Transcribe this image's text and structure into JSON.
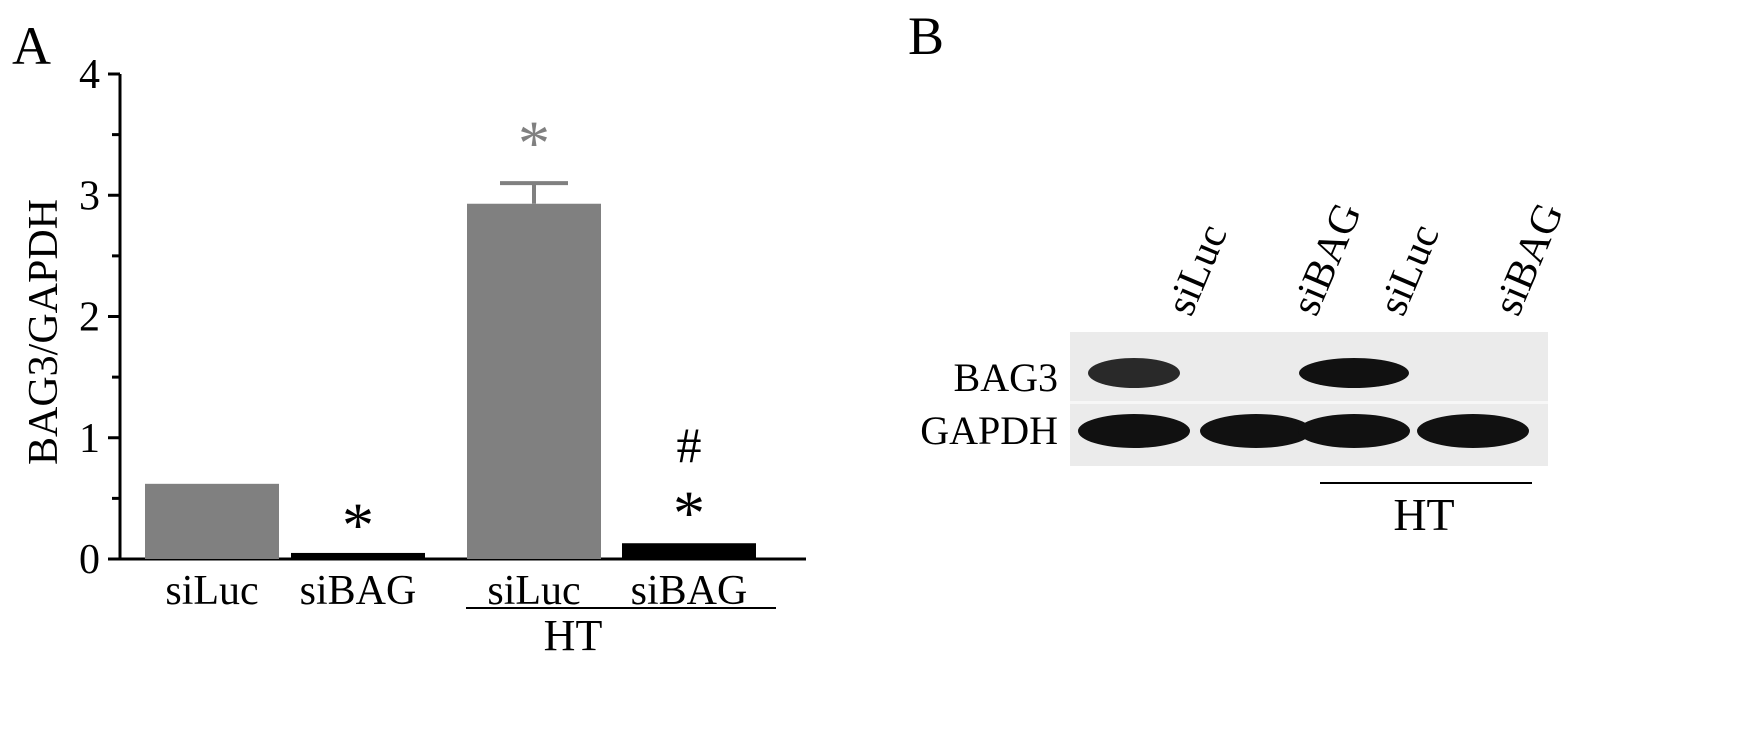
{
  "panel_a": {
    "letter": "A",
    "group_label": "HT"
  },
  "panel_b": {
    "letter": "B",
    "lane_labels": [
      "siLuc",
      "siBAG",
      "siLuc",
      "siBAG"
    ],
    "row_labels": [
      "BAG3",
      "GAPDH"
    ],
    "group_label": "HT",
    "band_intensity": {
      "BAG3": [
        0.75,
        0.0,
        1.0,
        0.0
      ],
      "GAPDH": [
        1.0,
        1.0,
        1.0,
        1.0
      ]
    }
  },
  "chart_data": {
    "type": "bar",
    "title": "",
    "xlabel": "",
    "ylabel": "BAG3/GAPDH",
    "ylim": [
      0,
      4
    ],
    "yticks": [
      0,
      1,
      2,
      3,
      4
    ],
    "minor_ticks": [
      0.5,
      1.5,
      2.5,
      3.5
    ],
    "categories": [
      "siLuc",
      "siBAG",
      "siLuc",
      "siBAG"
    ],
    "values": [
      0.62,
      0.05,
      2.93,
      0.13
    ],
    "errors": [
      0.02,
      0.0,
      0.17,
      0.0
    ],
    "colors": [
      "#808080",
      "#000000",
      "#808080",
      "#000000"
    ],
    "annotations": [
      {
        "category_index": 1,
        "text": "*",
        "color": "#000000",
        "y": 0.35
      },
      {
        "category_index": 2,
        "text": "*",
        "color": "#808080",
        "y": 3.5
      },
      {
        "category_index": 3,
        "text": "#",
        "color": "#000000",
        "y": 0.95
      },
      {
        "category_index": 3,
        "text": "*",
        "color": "#000000",
        "y": 0.45
      }
    ],
    "grid": false
  }
}
